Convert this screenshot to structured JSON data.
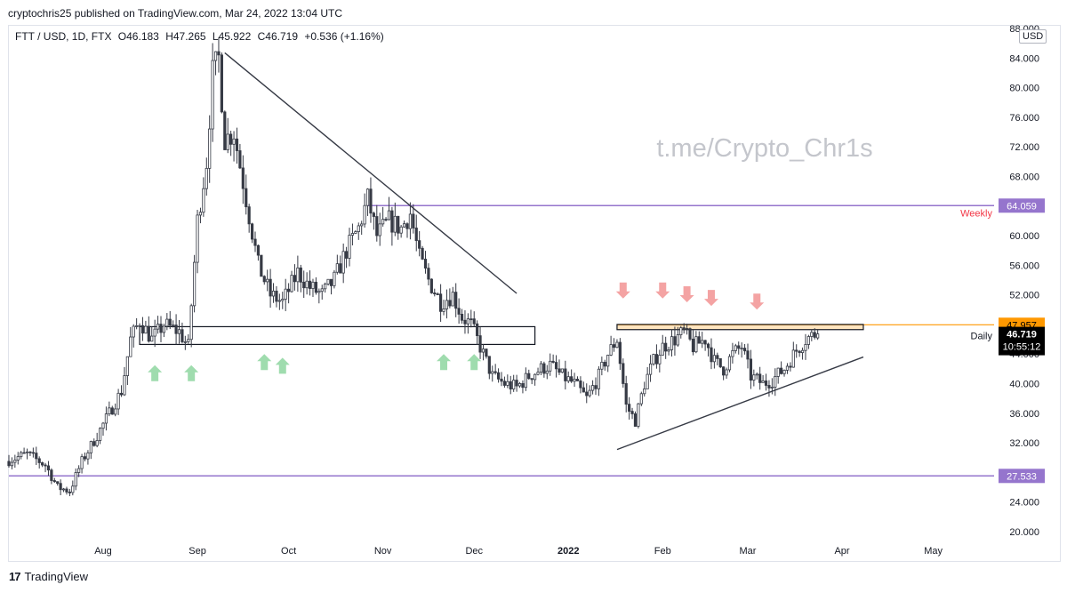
{
  "header": {
    "published": "cryptochris25 published on TradingView.com, Mar 24, 2022 13:04 UTC",
    "symbol": "FTT / USD, 1D, FTX",
    "open": "O46.183",
    "high": "H47.265",
    "low": "L45.922",
    "close": "C46.719",
    "change": "+0.536 (+1.16%)"
  },
  "currency_badge": "USD",
  "watermark": "t.me/Crypto_Chr1s",
  "footer": {
    "brand": "TradingView",
    "logo": "17"
  },
  "colors": {
    "up": "#ffffff",
    "down": "#363a45",
    "outline": "#363a45",
    "level_line": "#9575cd",
    "weekly_label": "#f23645",
    "daily_line": "#ff9800",
    "trendline": "#363a45",
    "green_arrow": "#9fdcae",
    "red_arrow": "#f4a3a3",
    "price_badge": "#000000",
    "orange_badge": "#ff9800",
    "level_badge": "#9575cd"
  },
  "chart_data": {
    "type": "candlestick",
    "y_axis": {
      "min": 20,
      "max": 88,
      "position": "right",
      "ticks": [
        "20.000",
        "24.000",
        "28.000",
        "32.000",
        "36.000",
        "40.000",
        "44.000",
        "48.000",
        "52.000",
        "56.000",
        "60.000",
        "64.000",
        "68.000",
        "72.000",
        "76.000",
        "80.000",
        "84.000",
        "88.000"
      ]
    },
    "x_axis": {
      "labels": [
        {
          "label": "Aug",
          "date": "2021-08-01"
        },
        {
          "label": "Sep",
          "date": "2021-09-01"
        },
        {
          "label": "Oct",
          "date": "2021-10-01"
        },
        {
          "label": "Nov",
          "date": "2021-11-01"
        },
        {
          "label": "Dec",
          "date": "2021-12-01"
        },
        {
          "label": "2022",
          "date": "2022-01-01"
        },
        {
          "label": "Feb",
          "date": "2022-02-01"
        },
        {
          "label": "Mar",
          "date": "2022-03-01"
        },
        {
          "label": "Apr",
          "date": "2022-04-01"
        },
        {
          "label": "May",
          "date": "2022-05-01"
        }
      ]
    },
    "price_path": [
      [
        "2021-07-01",
        29.5
      ],
      [
        "2021-07-08",
        30.5
      ],
      [
        "2021-07-14",
        29
      ],
      [
        "2021-07-18",
        26
      ],
      [
        "2021-07-22",
        25.5
      ],
      [
        "2021-07-26",
        29.5
      ],
      [
        "2021-07-31",
        33
      ],
      [
        "2021-08-04",
        36
      ],
      [
        "2021-08-08",
        39
      ],
      [
        "2021-08-11",
        46
      ],
      [
        "2021-08-14",
        48.5
      ],
      [
        "2021-08-18",
        46
      ],
      [
        "2021-08-22",
        48
      ],
      [
        "2021-08-27",
        47
      ],
      [
        "2021-08-30",
        45
      ],
      [
        "2021-09-02",
        62
      ],
      [
        "2021-09-05",
        70
      ],
      [
        "2021-09-07",
        82
      ],
      [
        "2021-09-09",
        84
      ],
      [
        "2021-09-11",
        73
      ],
      [
        "2021-09-14",
        74
      ],
      [
        "2021-09-18",
        65
      ],
      [
        "2021-09-22",
        56
      ],
      [
        "2021-09-26",
        52
      ],
      [
        "2021-09-30",
        51
      ],
      [
        "2021-10-05",
        55
      ],
      [
        "2021-10-09",
        53
      ],
      [
        "2021-10-13",
        52
      ],
      [
        "2021-10-17",
        54
      ],
      [
        "2021-10-21",
        58
      ],
      [
        "2021-10-25",
        61
      ],
      [
        "2021-10-28",
        65
      ],
      [
        "2021-10-31",
        60
      ],
      [
        "2021-11-04",
        62
      ],
      [
        "2021-11-08",
        61
      ],
      [
        "2021-11-11",
        63
      ],
      [
        "2021-11-14",
        57
      ],
      [
        "2021-11-17",
        54
      ],
      [
        "2021-11-21",
        51
      ],
      [
        "2021-11-25",
        52
      ],
      [
        "2021-11-28",
        49
      ],
      [
        "2021-12-01",
        48
      ],
      [
        "2021-12-04",
        45
      ],
      [
        "2021-12-08",
        41
      ],
      [
        "2021-12-12",
        40
      ],
      [
        "2021-12-16",
        39.5
      ],
      [
        "2021-12-20",
        41
      ],
      [
        "2021-12-24",
        42
      ],
      [
        "2021-12-27",
        42.5
      ],
      [
        "2021-12-31",
        41
      ],
      [
        "2022-01-04",
        40
      ],
      [
        "2022-01-08",
        38
      ],
      [
        "2022-01-12",
        41
      ],
      [
        "2022-01-15",
        44
      ],
      [
        "2022-01-18",
        46
      ],
      [
        "2022-01-21",
        37
      ],
      [
        "2022-01-24",
        35
      ],
      [
        "2022-01-27",
        40
      ],
      [
        "2022-01-30",
        43
      ],
      [
        "2022-02-02",
        45
      ],
      [
        "2022-02-06",
        46
      ],
      [
        "2022-02-09",
        47
      ],
      [
        "2022-02-12",
        45
      ],
      [
        "2022-02-16",
        46
      ],
      [
        "2022-02-19",
        43
      ],
      [
        "2022-02-22",
        42
      ],
      [
        "2022-02-25",
        44
      ],
      [
        "2022-02-28",
        45
      ],
      [
        "2022-03-03",
        41
      ],
      [
        "2022-03-07",
        40
      ],
      [
        "2022-03-10",
        40.5
      ],
      [
        "2022-03-14",
        42
      ],
      [
        "2022-03-18",
        44.5
      ],
      [
        "2022-03-21",
        46
      ],
      [
        "2022-03-24",
        46.7
      ]
    ],
    "last_candle": {
      "open": 46.183,
      "high": 47.265,
      "low": 45.922,
      "close": 46.719
    },
    "horizontal_levels": [
      {
        "price": 64.059,
        "label": "Weekly",
        "badge": "64.059",
        "start": "2021-10-27"
      },
      {
        "price": 27.533,
        "label": "",
        "badge": "27.533",
        "start": "2021-07-01"
      },
      {
        "price": 47.957,
        "label": "Daily",
        "badge": "47.957",
        "start": "2022-01-17"
      }
    ],
    "current_price": {
      "value": "46.719",
      "countdown": "10:55:12"
    },
    "trendlines": [
      {
        "from": [
          "2021-09-10",
          84.7
        ],
        "to": [
          "2021-12-15",
          52.2
        ]
      },
      {
        "from": [
          "2022-01-17",
          31.1
        ],
        "to": [
          "2022-04-08",
          43.6
        ]
      }
    ],
    "zones": [
      {
        "from": "2021-08-13",
        "to": "2021-12-21",
        "top": 47.7,
        "bottom": 45.3
      },
      {
        "from": "2022-01-17",
        "to": "2022-04-08",
        "top": 48,
        "bottom": 47.3
      }
    ],
    "up_arrows": [
      {
        "date": "2021-08-18",
        "price": 42.5
      },
      {
        "date": "2021-08-30",
        "price": 42.5
      },
      {
        "date": "2021-09-23",
        "price": 44
      },
      {
        "date": "2021-09-29",
        "price": 43.5
      },
      {
        "date": "2021-11-21",
        "price": 44
      },
      {
        "date": "2021-12-01",
        "price": 44
      }
    ],
    "down_arrows": [
      {
        "date": "2022-01-19",
        "price": 51.5
      },
      {
        "date": "2022-02-01",
        "price": 51.5
      },
      {
        "date": "2022-02-09",
        "price": 51
      },
      {
        "date": "2022-02-17",
        "price": 50.5
      },
      {
        "date": "2022-03-04",
        "price": 50
      }
    ]
  }
}
